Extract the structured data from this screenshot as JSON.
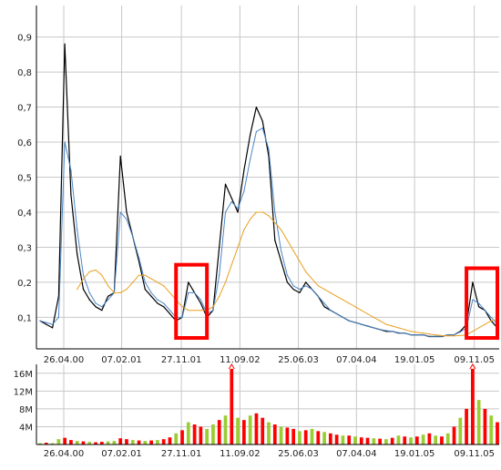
{
  "chart_data": [
    {
      "type": "line",
      "title": "",
      "xlabel": "",
      "ylabel": "",
      "x_ticks": [
        "26.04.00",
        "07.02.01",
        "27.11.01",
        "11.09.02",
        "25.06.03",
        "07.04.04",
        "19.01.05",
        "09.11.05"
      ],
      "y_ticks": [
        "0,1",
        "0,2",
        "0,3",
        "0,4",
        "0,5",
        "0,6",
        "0,7",
        "0,8",
        "0,9"
      ],
      "ylim": [
        0.01,
        0.99
      ],
      "grid": true,
      "x": [
        "2000-01",
        "2000-02",
        "2000-03",
        "2000-04",
        "2000-05",
        "2000-06",
        "2000-07",
        "2000-08",
        "2000-09",
        "2000-10",
        "2000-11",
        "2000-12",
        "2001-01",
        "2001-02",
        "2001-03",
        "2001-04",
        "2001-05",
        "2001-06",
        "2001-07",
        "2001-08",
        "2001-09",
        "2001-10",
        "2001-11",
        "2001-12",
        "2002-01",
        "2002-02",
        "2002-03",
        "2002-04",
        "2002-05",
        "2002-06",
        "2002-07",
        "2002-08",
        "2002-09",
        "2002-10",
        "2002-11",
        "2002-12",
        "2003-01",
        "2003-02",
        "2003-03",
        "2003-04",
        "2003-05",
        "2003-06",
        "2003-07",
        "2003-08",
        "2003-09",
        "2003-10",
        "2003-11",
        "2003-12",
        "2004-01",
        "2004-02",
        "2004-03",
        "2004-04",
        "2004-05",
        "2004-06",
        "2004-07",
        "2004-08",
        "2004-09",
        "2004-10",
        "2004-11",
        "2004-12",
        "2005-01",
        "2005-02",
        "2005-03",
        "2005-04",
        "2005-05",
        "2005-06",
        "2005-07",
        "2005-08",
        "2005-09",
        "2005-10",
        "2005-11",
        "2005-12",
        "2006-01",
        "2006-02",
        "2006-03"
      ],
      "series": [
        {
          "name": "",
          "color": "#000000",
          "values": [
            0.09,
            0.08,
            0.07,
            0.16,
            0.88,
            0.45,
            0.28,
            0.18,
            0.15,
            0.13,
            0.12,
            0.16,
            0.17,
            0.56,
            0.4,
            0.33,
            0.26,
            0.18,
            0.16,
            0.14,
            0.13,
            0.11,
            0.09,
            0.1,
            0.2,
            0.17,
            0.14,
            0.1,
            0.12,
            0.3,
            0.48,
            0.44,
            0.4,
            0.52,
            0.62,
            0.7,
            0.66,
            0.56,
            0.32,
            0.26,
            0.2,
            0.18,
            0.17,
            0.2,
            0.18,
            0.16,
            0.13,
            0.12,
            0.11,
            0.1,
            0.09,
            0.085,
            0.08,
            0.075,
            0.07,
            0.065,
            0.06,
            0.06,
            0.055,
            0.055,
            0.05,
            0.05,
            0.05,
            0.045,
            0.045,
            0.045,
            0.05,
            0.05,
            0.06,
            0.08,
            0.2,
            0.13,
            0.12,
            0.09,
            0.07
          ]
        },
        {
          "name": "",
          "color": "#4a86c8",
          "values": [
            0.09,
            0.085,
            0.08,
            0.1,
            0.6,
            0.52,
            0.35,
            0.22,
            0.17,
            0.14,
            0.13,
            0.15,
            0.17,
            0.4,
            0.38,
            0.33,
            0.27,
            0.2,
            0.17,
            0.15,
            0.14,
            0.12,
            0.1,
            0.1,
            0.17,
            0.17,
            0.15,
            0.11,
            0.12,
            0.22,
            0.4,
            0.43,
            0.41,
            0.46,
            0.55,
            0.63,
            0.64,
            0.58,
            0.4,
            0.29,
            0.22,
            0.19,
            0.18,
            0.19,
            0.18,
            0.16,
            0.14,
            0.12,
            0.11,
            0.1,
            0.09,
            0.085,
            0.08,
            0.075,
            0.07,
            0.065,
            0.062,
            0.06,
            0.056,
            0.055,
            0.05,
            0.05,
            0.05,
            0.046,
            0.046,
            0.046,
            0.05,
            0.05,
            0.058,
            0.07,
            0.15,
            0.14,
            0.12,
            0.1,
            0.08
          ]
        },
        {
          "name": "",
          "color": "#e8a020",
          "values": [
            null,
            null,
            null,
            null,
            null,
            null,
            0.18,
            0.21,
            0.23,
            0.235,
            0.22,
            0.19,
            0.17,
            0.17,
            0.18,
            0.2,
            0.22,
            0.22,
            0.21,
            0.2,
            0.19,
            0.17,
            0.15,
            0.13,
            0.12,
            0.12,
            0.12,
            0.12,
            0.13,
            0.16,
            0.2,
            0.25,
            0.3,
            0.35,
            0.38,
            0.4,
            0.4,
            0.39,
            0.37,
            0.35,
            0.32,
            0.29,
            0.26,
            0.23,
            0.21,
            0.19,
            0.18,
            0.17,
            0.16,
            0.15,
            0.14,
            0.13,
            0.12,
            0.11,
            0.1,
            0.09,
            0.08,
            0.075,
            0.07,
            0.065,
            0.06,
            0.057,
            0.055,
            0.052,
            0.05,
            0.048,
            0.047,
            0.047,
            0.048,
            0.05,
            0.06,
            0.07,
            0.08,
            0.09,
            0.095
          ]
        }
      ]
    },
    {
      "type": "bar",
      "title": "",
      "x_ticks": [
        "26.04.00",
        "07.02.01",
        "27.11.01",
        "11.09.02",
        "25.06.03",
        "07.04.04",
        "19.01.05",
        "09.11.05"
      ],
      "y_ticks": [
        "4M",
        "8M",
        "12M",
        "16M"
      ],
      "ylim": [
        0,
        18000000
      ],
      "grid": true,
      "series_colors": {
        "up": "#9acd32",
        "down": "#ff0000"
      },
      "x": [
        "2000-01",
        "2000-02",
        "2000-03",
        "2000-04",
        "2000-05",
        "2000-06",
        "2000-07",
        "2000-08",
        "2000-09",
        "2000-10",
        "2000-11",
        "2000-12",
        "2001-01",
        "2001-02",
        "2001-03",
        "2001-04",
        "2001-05",
        "2001-06",
        "2001-07",
        "2001-08",
        "2001-09",
        "2001-10",
        "2001-11",
        "2001-12",
        "2002-01",
        "2002-02",
        "2002-03",
        "2002-04",
        "2002-05",
        "2002-06",
        "2002-07",
        "2002-08",
        "2002-09",
        "2002-10",
        "2002-11",
        "2002-12",
        "2003-01",
        "2003-02",
        "2003-03",
        "2003-04",
        "2003-05",
        "2003-06",
        "2003-07",
        "2003-08",
        "2003-09",
        "2003-10",
        "2003-11",
        "2003-12",
        "2004-01",
        "2004-02",
        "2004-03",
        "2004-04",
        "2004-05",
        "2004-06",
        "2004-07",
        "2004-08",
        "2004-09",
        "2004-10",
        "2004-11",
        "2004-12",
        "2005-01",
        "2005-02",
        "2005-03",
        "2005-04",
        "2005-05",
        "2005-06",
        "2005-07",
        "2005-08",
        "2005-09",
        "2005-10",
        "2005-11",
        "2005-12",
        "2006-01",
        "2006-02",
        "2006-03"
      ],
      "values": [
        300000,
        400000,
        300000,
        1200000,
        1500000,
        1000000,
        800000,
        700000,
        600000,
        500000,
        600000,
        700000,
        800000,
        1400000,
        1200000,
        1000000,
        900000,
        800000,
        900000,
        1000000,
        1200000,
        1600000,
        2500000,
        3200000,
        5000000,
        4500000,
        4000000,
        3500000,
        4500000,
        5500000,
        6500000,
        17000000,
        6000000,
        5500000,
        6500000,
        7000000,
        6000000,
        5000000,
        4500000,
        4000000,
        3800000,
        3500000,
        3000000,
        3200000,
        3500000,
        3000000,
        2800000,
        2500000,
        2200000,
        2000000,
        2000000,
        1800000,
        1600000,
        1500000,
        1400000,
        1300000,
        1200000,
        1500000,
        2000000,
        1800000,
        1600000,
        1800000,
        2200000,
        2500000,
        2000000,
        1800000,
        2500000,
        4000000,
        6000000,
        8000000,
        17000000,
        10000000,
        8000000,
        6500000,
        5000000
      ],
      "direction": [
        "up",
        "down",
        "up",
        "up",
        "down",
        "down",
        "up",
        "down",
        "up",
        "down",
        "down",
        "up",
        "up",
        "down",
        "down",
        "up",
        "down",
        "up",
        "down",
        "up",
        "down",
        "down",
        "up",
        "down",
        "up",
        "down",
        "down",
        "up",
        "up",
        "down",
        "up",
        "down",
        "up",
        "down",
        "up",
        "down",
        "down",
        "up",
        "down",
        "up",
        "down",
        "down",
        "up",
        "down",
        "up",
        "down",
        "up",
        "down",
        "down",
        "up",
        "down",
        "up",
        "down",
        "down",
        "up",
        "down",
        "up",
        "down",
        "up",
        "down",
        "up",
        "down",
        "up",
        "down",
        "up",
        "down",
        "up",
        "down",
        "up",
        "down",
        "down",
        "up",
        "down",
        "up",
        "down"
      ],
      "overflow_markers": [
        "2002-08",
        "2005-11"
      ]
    }
  ],
  "annotations": [
    {
      "type": "highlight-box",
      "color": "#ff0000",
      "x_from": "2001-11",
      "x_to": "2002-04",
      "y_from": 0.04,
      "y_to": 0.25
    },
    {
      "type": "highlight-box",
      "color": "#ff0000",
      "x_from": "2005-10",
      "x_to": "2006-03",
      "y_from": 0.01,
      "y_to": 0.24
    }
  ]
}
